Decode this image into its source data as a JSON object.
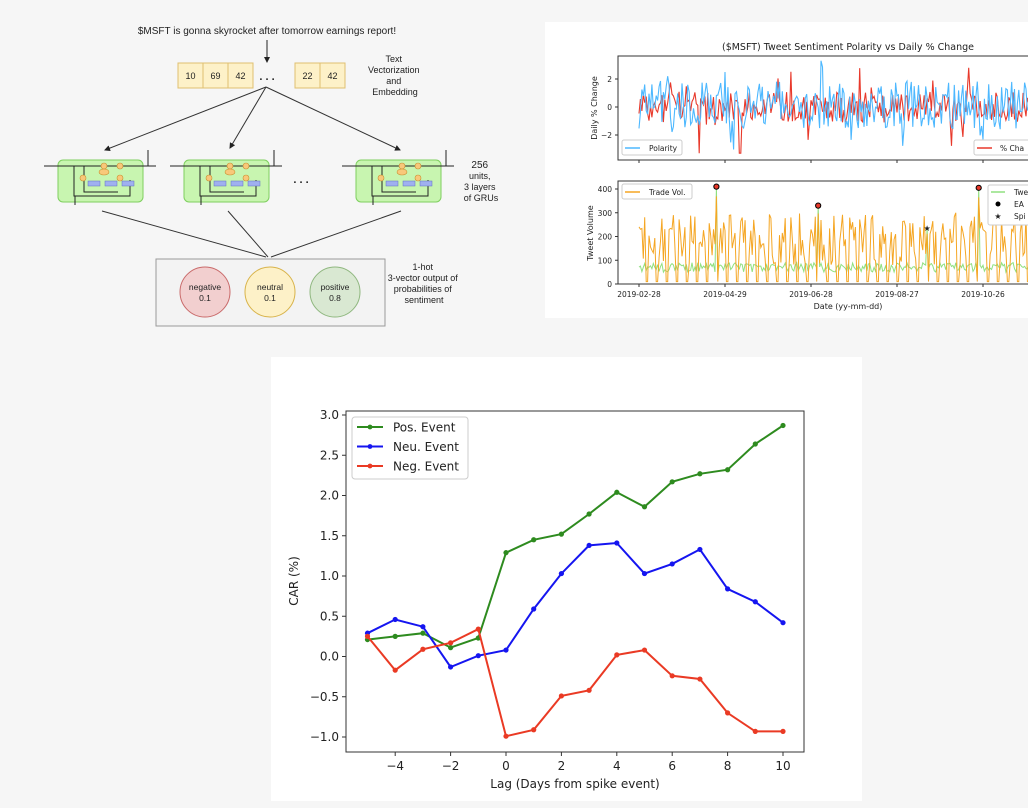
{
  "diagram": {
    "input_sentence": "$MSFT is gonna skyrocket after tomorrow earnings report!",
    "tokens_left": [
      "10",
      "69",
      "42"
    ],
    "ellipsis": ". . .",
    "tokens_right": [
      "22",
      "42"
    ],
    "embedding_label": [
      "Text",
      "Vectorization",
      "and",
      "Embedding"
    ],
    "gru_label": [
      "256",
      "units,",
      "3 layers",
      "of GRUs"
    ],
    "output_label": [
      "1-hot",
      "3-vector output of",
      "probabilities of",
      "sentiment"
    ],
    "outputs": [
      {
        "name": "negative",
        "value": "0.1",
        "fill": "#f2cfcf",
        "stroke": "#c96a6a"
      },
      {
        "name": "neutral",
        "value": "0.1",
        "fill": "#fdf1c8",
        "stroke": "#d8b34a"
      },
      {
        "name": "positive",
        "value": "0.8",
        "fill": "#d9e8d2",
        "stroke": "#8fb77f"
      }
    ]
  },
  "chart_data": [
    {
      "type": "line",
      "title": "($MSFT) Tweet Sentiment Polarity vs Daily % Change",
      "subplots": [
        {
          "ylabel": "Daily % Change",
          "yticks": [
            "2",
            "0",
            "−2"
          ],
          "ylim": [
            -3.5,
            3.5
          ],
          "legend": [
            {
              "label": "Polarity",
              "color": "#4db8ff",
              "placement": "lower-left"
            },
            {
              "label": "% Cha",
              "color": "#e8392b",
              "placement": "lower-right"
            }
          ],
          "series": [
            {
              "name": "Polarity",
              "color": "#4db8ff"
            },
            {
              "name": "% Change",
              "color": "#e8392b"
            }
          ]
        },
        {
          "ylabel": "Tweet Volume",
          "yticks": [
            "400",
            "300",
            "200",
            "100",
            "0"
          ],
          "ylim": [
            0,
            430
          ],
          "legend_left": [
            {
              "label": "Trade Vol.",
              "color": "#f5a623"
            }
          ],
          "legend_right": [
            {
              "label": "Twe",
              "color": "#90e080"
            },
            {
              "label": "EA",
              "color": "#000000"
            },
            {
              "label": "Spi",
              "color": "#e8392b"
            }
          ],
          "series": [
            {
              "name": "Trade Vol.",
              "color": "#f5a623"
            },
            {
              "name": "Tweet Vol.",
              "color": "#90e080"
            }
          ],
          "ea_events": [
            {
              "day": 54,
              "value": 410
            },
            {
              "day": 125,
              "value": 330
            },
            {
              "day": 237,
              "value": 405
            }
          ],
          "spike_events": [
            {
              "day": 54,
              "value": 410
            },
            {
              "day": 125,
              "value": 330
            },
            {
              "day": 201,
              "value": 235
            },
            {
              "day": 237,
              "value": 405
            }
          ]
        }
      ],
      "xlabel": "Date (yy-mm-dd)",
      "xticks": [
        "2019-02-28",
        "2019-04-29",
        "2019-06-28",
        "2019-08-27",
        "2019-10-26"
      ]
    },
    {
      "type": "line",
      "title": "",
      "xlabel": "Lag (Days from spike event)",
      "ylabel": "CAR (%)",
      "x": [
        -5,
        -4,
        -3,
        -2,
        -1,
        0,
        1,
        2,
        3,
        4,
        5,
        6,
        7,
        8,
        9,
        10
      ],
      "xlim": [
        -5.75,
        10.75
      ],
      "ylim": [
        -1.2,
        3.05
      ],
      "xticks": [
        -4,
        -2,
        0,
        2,
        4,
        6,
        8,
        10
      ],
      "xtick_labels": [
        "−4",
        "−2",
        "0",
        "2",
        "4",
        "6",
        "8",
        "10"
      ],
      "yticks": [
        3.0,
        2.5,
        2.0,
        1.5,
        1.0,
        0.5,
        0.0,
        -0.5,
        -1.0
      ],
      "ytick_labels": [
        "3.0",
        "2.5",
        "2.0",
        "1.5",
        "1.0",
        "0.5",
        "0.0",
        "−0.5",
        "−1.0"
      ],
      "legend_placement": "top-left",
      "grid": false,
      "series": [
        {
          "name": "Pos. Event",
          "color": "#2e8b1f",
          "values": [
            0.21,
            0.25,
            0.29,
            0.11,
            0.23,
            1.29,
            1.45,
            1.52,
            1.77,
            2.04,
            1.86,
            2.17,
            2.27,
            2.32,
            2.64,
            2.87
          ]
        },
        {
          "name": "Neu. Event",
          "color": "#1515f0",
          "values": [
            0.29,
            0.46,
            0.37,
            -0.13,
            0.01,
            0.08,
            0.59,
            1.03,
            1.38,
            1.41,
            1.03,
            1.15,
            1.33,
            0.84,
            0.68,
            0.42
          ]
        },
        {
          "name": "Neg. Event",
          "color": "#ea3a24",
          "values": [
            0.25,
            -0.17,
            0.09,
            0.17,
            0.34,
            -0.99,
            -0.91,
            -0.49,
            -0.42,
            0.02,
            0.08,
            -0.24,
            -0.28,
            -0.7,
            -0.93,
            -0.93
          ]
        }
      ]
    }
  ]
}
